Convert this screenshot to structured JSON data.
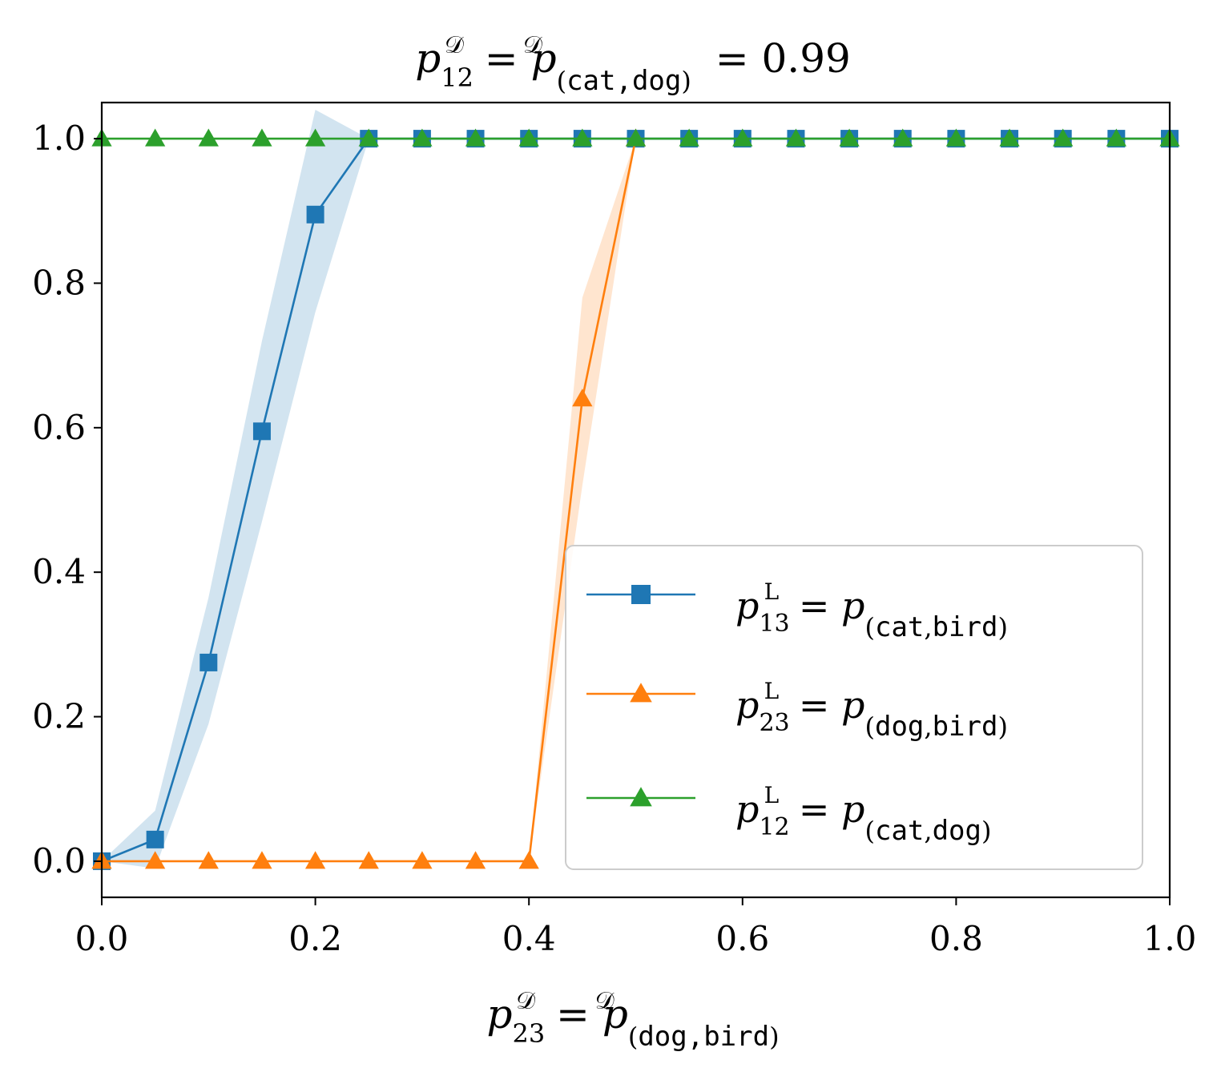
{
  "chart_data": {
    "type": "line",
    "title": {
      "lhs_sub": "12",
      "mid_sub": "cat,dog",
      "sup": "𝒟",
      "value": "0.99"
    },
    "xlabel": {
      "lhs_sub": "23",
      "mid_sub": "dog,bird",
      "sup": "𝒟"
    },
    "ylabel": "",
    "xlim": [
      0,
      1
    ],
    "ylim": [
      -0.05,
      1.05
    ],
    "x_ticks": [
      0.0,
      0.2,
      0.4,
      0.6,
      0.8,
      1.0
    ],
    "x_tick_labels": [
      "0.0",
      "0.2",
      "0.4",
      "0.6",
      "0.8",
      "1.0"
    ],
    "y_ticks": [
      0.0,
      0.2,
      0.4,
      0.6,
      0.8,
      1.0
    ],
    "y_tick_labels": [
      "0.0",
      "0.2",
      "0.4",
      "0.6",
      "0.8",
      "1.0"
    ],
    "legend_position": "lower-right",
    "series": [
      {
        "name": "p13 = p(cat,bird)",
        "lhs_sub": "13",
        "pair_a": "cat",
        "pair_b": "bird",
        "sup": "L",
        "color": "#1f77b4",
        "band_color": "#1f77b4",
        "marker": "square",
        "x": [
          0.0,
          0.05,
          0.1,
          0.15,
          0.2,
          0.25,
          0.3,
          0.35,
          0.4,
          0.45,
          0.5,
          0.55,
          0.6,
          0.65,
          0.7,
          0.75,
          0.8,
          0.85,
          0.9,
          0.95,
          1.0
        ],
        "values": [
          0.0,
          0.03,
          0.275,
          0.595,
          0.895,
          1.0,
          1.0,
          1.0,
          1.0,
          1.0,
          1.0,
          1.0,
          1.0,
          1.0,
          1.0,
          1.0,
          1.0,
          1.0,
          1.0,
          1.0,
          1.0
        ],
        "lower": [
          0.0,
          -0.01,
          0.19,
          0.47,
          0.76,
          1.0,
          1.0,
          1.0,
          1.0,
          1.0,
          1.0,
          1.0,
          1.0,
          1.0,
          1.0,
          1.0,
          1.0,
          1.0,
          1.0,
          1.0,
          1.0
        ],
        "upper": [
          0.0,
          0.07,
          0.365,
          0.72,
          1.04,
          1.0,
          1.0,
          1.0,
          1.0,
          1.0,
          1.0,
          1.0,
          1.0,
          1.0,
          1.0,
          1.0,
          1.0,
          1.0,
          1.0,
          1.0,
          1.0
        ]
      },
      {
        "name": "p23 = p(dog,bird)",
        "lhs_sub": "23",
        "pair_a": "dog",
        "pair_b": "bird",
        "sup": "L",
        "color": "#ff7f0e",
        "band_color": "#ff7f0e",
        "marker": "triangle",
        "x": [
          0.0,
          0.05,
          0.1,
          0.15,
          0.2,
          0.25,
          0.3,
          0.35,
          0.4,
          0.45,
          0.5
        ],
        "values": [
          0.0,
          0.0,
          0.0,
          0.0,
          0.0,
          0.0,
          0.0,
          0.0,
          0.0,
          0.64,
          1.0
        ],
        "lower": [
          0.0,
          0.0,
          0.0,
          0.0,
          0.0,
          0.0,
          0.0,
          0.0,
          0.0,
          0.52,
          1.0
        ],
        "upper": [
          0.0,
          0.0,
          0.0,
          0.0,
          0.0,
          0.0,
          0.0,
          0.0,
          0.0,
          0.78,
          1.0
        ]
      },
      {
        "name": "p12 = p(cat,dog)",
        "lhs_sub": "12",
        "pair_a": "cat",
        "pair_b": "dog",
        "sup": "L",
        "color": "#2ca02c",
        "band_color": "#2ca02c",
        "marker": "triangle",
        "x": [
          0.0,
          0.05,
          0.1,
          0.15,
          0.2,
          0.25,
          0.3,
          0.35,
          0.4,
          0.45,
          0.5,
          0.55,
          0.6,
          0.65,
          0.7,
          0.75,
          0.8,
          0.85,
          0.9,
          0.95,
          1.0
        ],
        "values": [
          1.0,
          1.0,
          1.0,
          1.0,
          1.0,
          1.0,
          1.0,
          1.0,
          1.0,
          1.0,
          1.0,
          1.0,
          1.0,
          1.0,
          1.0,
          1.0,
          1.0,
          1.0,
          1.0,
          1.0,
          1.0
        ],
        "lower": null,
        "upper": null
      }
    ]
  }
}
